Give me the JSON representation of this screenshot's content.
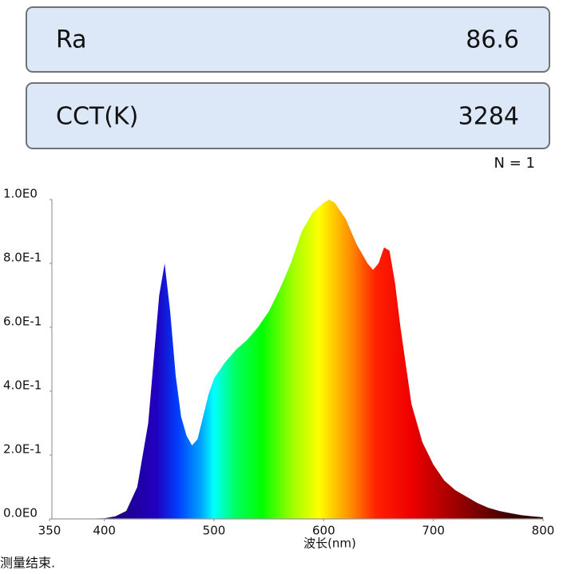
{
  "metrics": [
    {
      "label": "Ra",
      "value": "86.6"
    },
    {
      "label": "CCT(K)",
      "value": "3284"
    }
  ],
  "count_label": "N = 1",
  "status": "测量结束.",
  "chart_data": {
    "type": "area",
    "x_label": "波长(nm)",
    "x": [
      350,
      380,
      400,
      410,
      420,
      430,
      440,
      445,
      450,
      455,
      460,
      465,
      470,
      475,
      480,
      485,
      490,
      495,
      500,
      510,
      520,
      530,
      540,
      550,
      560,
      570,
      580,
      590,
      600,
      605,
      610,
      620,
      630,
      640,
      645,
      650,
      655,
      660,
      665,
      670,
      680,
      690,
      700,
      710,
      720,
      730,
      740,
      750,
      760,
      770,
      780,
      790,
      800
    ],
    "values": [
      0,
      0,
      0.002,
      0.008,
      0.025,
      0.1,
      0.3,
      0.5,
      0.7,
      0.8,
      0.65,
      0.45,
      0.32,
      0.26,
      0.23,
      0.25,
      0.32,
      0.39,
      0.44,
      0.49,
      0.53,
      0.56,
      0.6,
      0.65,
      0.72,
      0.8,
      0.9,
      0.96,
      0.99,
      1.0,
      0.99,
      0.94,
      0.86,
      0.8,
      0.78,
      0.8,
      0.85,
      0.84,
      0.74,
      0.6,
      0.36,
      0.24,
      0.17,
      0.12,
      0.09,
      0.07,
      0.05,
      0.035,
      0.025,
      0.018,
      0.012,
      0.008,
      0.005
    ],
    "xlim": [
      350,
      800
    ],
    "xticks": [
      350,
      400,
      500,
      600,
      700,
      800
    ],
    "ylim": [
      0,
      1
    ],
    "yticks": [
      {
        "value": 0,
        "label": "0.0E0"
      },
      {
        "value": 0.2,
        "label": "2.0E-1"
      },
      {
        "value": 0.4,
        "label": "4.0E-1"
      },
      {
        "value": 0.6,
        "label": "6.0E-1"
      },
      {
        "value": 0.8,
        "label": "8.0E-1"
      },
      {
        "value": 1,
        "label": "1.0E0"
      }
    ],
    "grid": false
  }
}
